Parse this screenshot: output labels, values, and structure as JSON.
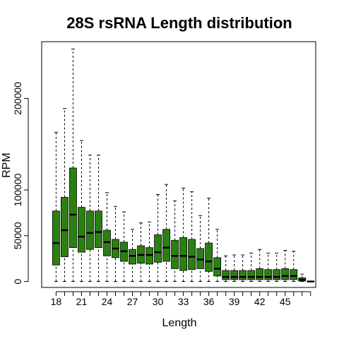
{
  "chart_data": {
    "type": "boxplot",
    "title": "28S rsRNA Length distribution",
    "xlabel": "Length",
    "ylabel": "RPM",
    "x_tick_labels": [
      "18",
      "21",
      "24",
      "27",
      "30",
      "33",
      "36",
      "39",
      "42",
      "45"
    ],
    "x_tick_values": [
      18,
      21,
      24,
      27,
      30,
      33,
      36,
      39,
      42,
      45
    ],
    "y_tick_labels": [
      "0",
      "50000",
      "100000",
      "200000"
    ],
    "y_tick_values": [
      0,
      50000,
      100000,
      200000
    ],
    "xlim": [
      16.3,
      48.6
    ],
    "ylim": [
      -6500,
      262000
    ],
    "fill_color": "#2b8110",
    "median_color": "#000000",
    "boxes": [
      {
        "x": 18,
        "min": 0,
        "q1": 18000,
        "median": 42000,
        "q3": 77000,
        "max": 163000
      },
      {
        "x": 19,
        "min": 0,
        "q1": 27000,
        "median": 56000,
        "q3": 92000,
        "max": 189000
      },
      {
        "x": 20,
        "min": 0,
        "q1": 37000,
        "median": 73000,
        "q3": 124000,
        "max": 254000
      },
      {
        "x": 21,
        "min": 0,
        "q1": 32000,
        "median": 49000,
        "q3": 81000,
        "max": 154000
      },
      {
        "x": 22,
        "min": 0,
        "q1": 35000,
        "median": 53000,
        "q3": 77000,
        "max": 138000
      },
      {
        "x": 23,
        "min": 0,
        "q1": 37000,
        "median": 54000,
        "q3": 77000,
        "max": 138000
      },
      {
        "x": 24,
        "min": 0,
        "q1": 28000,
        "median": 43000,
        "q3": 56000,
        "max": 97000
      },
      {
        "x": 25,
        "min": 0,
        "q1": 26000,
        "median": 36000,
        "q3": 46000,
        "max": 82000
      },
      {
        "x": 26,
        "min": 0,
        "q1": 22000,
        "median": 33000,
        "q3": 43000,
        "max": 76000
      },
      {
        "x": 27,
        "min": 0,
        "q1": 19000,
        "median": 28000,
        "q3": 35000,
        "max": 57000
      },
      {
        "x": 28,
        "min": 0,
        "q1": 20000,
        "median": 29000,
        "q3": 39000,
        "max": 64000
      },
      {
        "x": 29,
        "min": 0,
        "q1": 19000,
        "median": 29000,
        "q3": 37000,
        "max": 65000
      },
      {
        "x": 30,
        "min": 0,
        "q1": 21000,
        "median": 32000,
        "q3": 51000,
        "max": 95000
      },
      {
        "x": 31,
        "min": 0,
        "q1": 22000,
        "median": 37000,
        "q3": 57000,
        "max": 106000
      },
      {
        "x": 32,
        "min": 0,
        "q1": 14000,
        "median": 28000,
        "q3": 45000,
        "max": 88000
      },
      {
        "x": 33,
        "min": 0,
        "q1": 12000,
        "median": 28000,
        "q3": 48000,
        "max": 102000
      },
      {
        "x": 34,
        "min": 0,
        "q1": 13000,
        "median": 27000,
        "q3": 46000,
        "max": 98000
      },
      {
        "x": 35,
        "min": 0,
        "q1": 14000,
        "median": 24000,
        "q3": 36000,
        "max": 72000
      },
      {
        "x": 36,
        "min": 0,
        "q1": 11000,
        "median": 22000,
        "q3": 42000,
        "max": 91000
      },
      {
        "x": 37,
        "min": 0,
        "q1": 6000,
        "median": 14000,
        "q3": 26000,
        "max": 57000
      },
      {
        "x": 38,
        "min": 0,
        "q1": 2000,
        "median": 5000,
        "q3": 12000,
        "max": 28000
      },
      {
        "x": 39,
        "min": 0,
        "q1": 2000,
        "median": 5000,
        "q3": 12000,
        "max": 29000
      },
      {
        "x": 40,
        "min": 0,
        "q1": 2000,
        "median": 5000,
        "q3": 12000,
        "max": 29000
      },
      {
        "x": 41,
        "min": 0,
        "q1": 2000,
        "median": 5000,
        "q3": 12000,
        "max": 31000
      },
      {
        "x": 42,
        "min": 0,
        "q1": 2000,
        "median": 5000,
        "q3": 14000,
        "max": 35000
      },
      {
        "x": 43,
        "min": 0,
        "q1": 2000,
        "median": 5000,
        "q3": 13000,
        "max": 31000
      },
      {
        "x": 44,
        "min": 0,
        "q1": 2000,
        "median": 5000,
        "q3": 13000,
        "max": 31000
      },
      {
        "x": 45,
        "min": 0,
        "q1": 2000,
        "median": 6000,
        "q3": 14000,
        "max": 34000
      },
      {
        "x": 46,
        "min": 0,
        "q1": 2000,
        "median": 6000,
        "q3": 13000,
        "max": 33000
      },
      {
        "x": 47,
        "min": 0,
        "q1": 500,
        "median": 2000,
        "q3": 4000,
        "max": 8000
      },
      {
        "x": 48,
        "min": 0,
        "q1": 0,
        "median": 0,
        "q3": 200,
        "max": 300
      }
    ]
  }
}
